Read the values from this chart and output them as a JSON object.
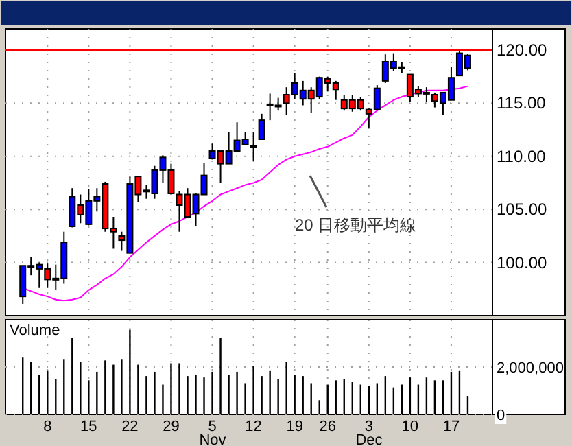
{
  "chart_data": [
    {
      "type": "candlestick",
      "categories": [
        null,
        null,
        null,
        "8",
        null,
        null,
        null,
        null,
        "15",
        null,
        null,
        null,
        null,
        "22",
        null,
        null,
        null,
        null,
        "29",
        null,
        null,
        null,
        null,
        "5",
        null,
        null,
        null,
        null,
        "12",
        null,
        null,
        null,
        null,
        "19",
        null,
        null,
        null,
        "26",
        null,
        null,
        null,
        null,
        "3",
        null,
        null,
        null,
        null,
        "10",
        null,
        null,
        null,
        null,
        "17",
        null,
        null
      ],
      "ohlc": [
        [
          96.8,
          99.7,
          96.1,
          99.7
        ],
        [
          99.7,
          100.5,
          98.8,
          99.7
        ],
        [
          99.4,
          100.0,
          97.6,
          99.8
        ],
        [
          99.4,
          99.9,
          97.6,
          98.4
        ],
        [
          98.5,
          99.8,
          97.4,
          98.5
        ],
        [
          98.5,
          102.9,
          98.0,
          101.9
        ],
        [
          103.4,
          107.0,
          103.3,
          106.2
        ],
        [
          105.4,
          106.4,
          103.7,
          104.5
        ],
        [
          103.6,
          106.9,
          103.5,
          105.8
        ],
        [
          105.8,
          107.0,
          104.8,
          106.2
        ],
        [
          107.4,
          107.6,
          102.9,
          103.2
        ],
        [
          103.2,
          104.3,
          101.3,
          102.9
        ],
        [
          102.5,
          102.9,
          101.1,
          102.1
        ],
        [
          100.9,
          108.1,
          100.9,
          107.4
        ],
        [
          108.1,
          108.1,
          105.7,
          106.4
        ],
        [
          106.8,
          107.3,
          106.0,
          106.8
        ],
        [
          106.5,
          109.1,
          106.0,
          108.7
        ],
        [
          108.7,
          110.1,
          107.5,
          109.9
        ],
        [
          108.7,
          109.3,
          106.4,
          106.5
        ],
        [
          106.4,
          106.7,
          102.9,
          105.4
        ],
        [
          106.4,
          107.0,
          104.3,
          104.3
        ],
        [
          104.6,
          106.5,
          103.4,
          106.4
        ],
        [
          106.4,
          109.4,
          106.4,
          108.2
        ],
        [
          109.8,
          111.2,
          109.7,
          110.5
        ],
        [
          110.5,
          110.5,
          107.5,
          109.3
        ],
        [
          109.3,
          112.3,
          109.3,
          110.5
        ],
        [
          110.5,
          113.2,
          110.5,
          111.5
        ],
        [
          111.1,
          112.3,
          111.1,
          111.6
        ],
        [
          111.0,
          112.3,
          109.6,
          111.0
        ],
        [
          111.6,
          114.0,
          111.6,
          113.4
        ],
        [
          114.9,
          115.9,
          113.4,
          114.9
        ],
        [
          114.8,
          115.5,
          114.3,
          114.8
        ],
        [
          115.8,
          116.5,
          113.9,
          115.0
        ],
        [
          115.8,
          117.8,
          115.4,
          116.9
        ],
        [
          115.4,
          117.1,
          114.8,
          116.2
        ],
        [
          116.2,
          116.5,
          114.1,
          115.4
        ],
        [
          115.6,
          117.5,
          115.4,
          117.4
        ],
        [
          117.3,
          117.5,
          116.1,
          116.9
        ],
        [
          116.9,
          117.1,
          115.3,
          116.3
        ],
        [
          115.3,
          115.8,
          114.3,
          114.5
        ],
        [
          115.3,
          115.8,
          114.2,
          114.5
        ],
        [
          115.3,
          115.6,
          114.3,
          114.5
        ],
        [
          114.4,
          114.5,
          112.7,
          114.0
        ],
        [
          114.4,
          116.7,
          114.4,
          116.4
        ],
        [
          117.1,
          119.6,
          116.9,
          118.9
        ],
        [
          118.3,
          119.7,
          118.0,
          118.9
        ],
        [
          118.4,
          118.9,
          117.8,
          118.4
        ],
        [
          117.7,
          117.7,
          115.1,
          115.6
        ],
        [
          116.3,
          116.6,
          115.6,
          115.9
        ],
        [
          116.0,
          116.5,
          115.1,
          116.0
        ],
        [
          115.8,
          116.0,
          114.6,
          115.2
        ],
        [
          115.0,
          116.0,
          113.9,
          116.0
        ],
        [
          115.3,
          118.4,
          115.3,
          117.4
        ],
        [
          117.6,
          119.9,
          117.6,
          119.7
        ],
        [
          118.3,
          119.6,
          118.1,
          119.5
        ]
      ],
      "colors": [
        "#0000ff",
        "#000000",
        "#0000ff",
        "#ff0000",
        "#000000",
        "#0000ff",
        "#0000ff",
        "#ff0000",
        "#0000ff",
        "#0000ff",
        "#ff0000",
        "#ff0000",
        "#ff0000",
        "#0000ff",
        "#ff0000",
        "#000000",
        "#0000ff",
        "#0000ff",
        "#ff0000",
        "#ff0000",
        "#ff0000",
        "#0000ff",
        "#0000ff",
        "#0000ff",
        "#ff0000",
        "#0000ff",
        "#0000ff",
        "#0000ff",
        "#000000",
        "#0000ff",
        "#000000",
        "#000000",
        "#ff0000",
        "#0000ff",
        "#0000ff",
        "#ff0000",
        "#0000ff",
        "#ff0000",
        "#ff0000",
        "#ff0000",
        "#ff0000",
        "#ff0000",
        "#ff0000",
        "#0000ff",
        "#0000ff",
        "#0000ff",
        "#000000",
        "#ff0000",
        "#ff0000",
        "#000000",
        "#ff0000",
        "#0000ff",
        "#0000ff",
        "#0000ff",
        "#0000ff"
      ],
      "series": [
        {
          "type": "line",
          "color": "#ff00ff",
          "values": [
            97.6,
            97.3,
            97.0,
            96.8,
            96.5,
            96.4,
            96.5,
            96.7,
            97.4,
            97.9,
            98.5,
            98.9,
            99.6,
            100.5,
            101.2,
            101.9,
            102.5,
            103.1,
            103.6,
            103.9,
            104.3,
            104.7,
            105.3,
            105.8,
            106.4,
            106.7,
            107.0,
            107.3,
            107.5,
            107.8,
            108.5,
            109.2,
            109.7,
            110.0,
            110.2,
            110.4,
            110.7,
            110.9,
            111.3,
            111.7,
            112.0,
            112.8,
            113.7,
            114.3,
            114.8,
            115.3,
            115.6,
            115.8,
            116.0,
            116.2,
            116.2,
            116.2,
            116.3,
            116.4,
            116.6
          ]
        }
      ],
      "ref_lines": [
        {
          "axis": "y",
          "value": 120,
          "color": "#ff0000"
        }
      ],
      "annotations": [
        "20 日移動平均線"
      ],
      "ylim": [
        95,
        122
      ],
      "yticks": [
        {
          "value": 100,
          "label": "100.00"
        },
        {
          "value": 105,
          "label": "105.00"
        },
        {
          "value": 110,
          "label": "110.00"
        },
        {
          "value": 115,
          "label": "115.00"
        },
        {
          "value": 120,
          "label": "120.00"
        }
      ],
      "grid": true,
      "tick_labels": "y"
    },
    {
      "type": "bar",
      "title": "Volume",
      "categories": [
        null,
        null,
        null,
        "8",
        null,
        null,
        null,
        null,
        "15",
        null,
        null,
        null,
        null,
        "22",
        null,
        null,
        null,
        null,
        "29",
        null,
        null,
        null,
        null,
        "5",
        null,
        null,
        null,
        null,
        "12",
        null,
        null,
        null,
        null,
        "19",
        null,
        null,
        null,
        "26",
        null,
        null,
        null,
        null,
        "3",
        null,
        null,
        null,
        null,
        "10",
        null,
        null,
        null,
        null,
        "17",
        null,
        null
      ],
      "values": [
        2400000,
        2220000,
        1680000,
        1860000,
        1480000,
        2340000,
        3240000,
        2220000,
        1440000,
        1800000,
        2280000,
        2100000,
        2340000,
        3580000,
        2100000,
        1620000,
        1800000,
        1260000,
        2160000,
        2160000,
        1620000,
        1680000,
        1560000,
        1800000,
        3240000,
        1680000,
        1800000,
        1320000,
        2040000,
        1620000,
        1860000,
        1500000,
        2220000,
        1680000,
        1620000,
        1320000,
        600000,
        1260000,
        1440000,
        1500000,
        1380000,
        1260000,
        1200000,
        1320000,
        1620000,
        1140000,
        1260000,
        1560000,
        1260000,
        1560000,
        1440000,
        1440000,
        1800000,
        1860000,
        780000
      ],
      "color": "#000000",
      "annotations": [
        "Nov",
        "Dec"
      ],
      "ylim": [
        0,
        4000000
      ],
      "yticks": [
        0,
        {
          "value": 2000000,
          "label": "2,000,000"
        }
      ],
      "grid": true
    }
  ]
}
